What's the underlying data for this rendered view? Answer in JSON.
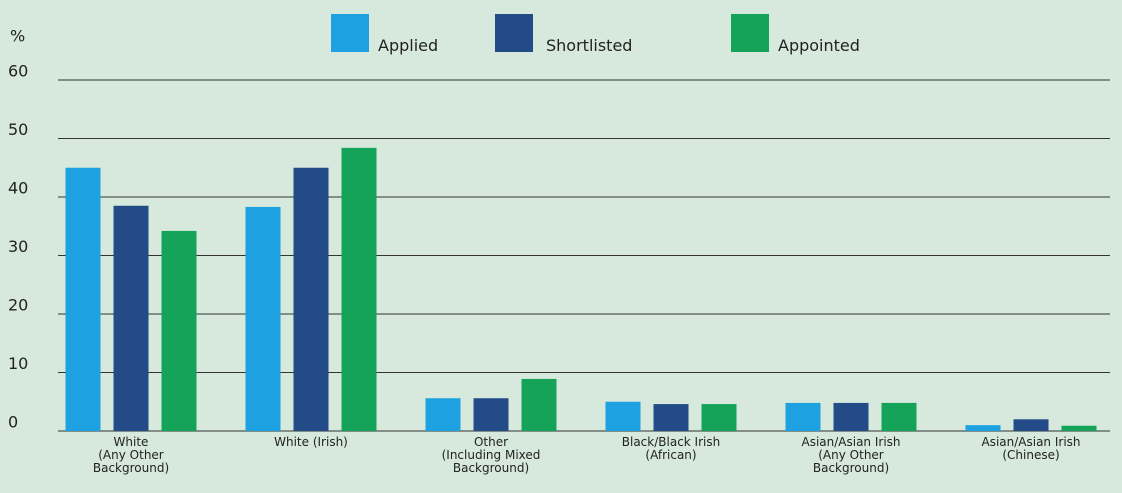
{
  "chart_data": {
    "type": "bar",
    "y_label": "%",
    "categories": [
      "White\n(Any Other\nBackground)",
      "White (Irish)",
      "Other\n(Including Mixed\nBackground)",
      "Black/Black Irish\n(African)",
      "Asian/Asian Irish\n(Any Other\nBackground)",
      "Asian/Asian Irish\n(Chinese)"
    ],
    "series": [
      {
        "name": "Applied",
        "color": "#1ea1e0",
        "values": [
          45,
          38.3,
          5.6,
          5.0,
          4.8,
          1.0
        ]
      },
      {
        "name": "Shortlisted",
        "color": "#224b87",
        "values": [
          38.5,
          45,
          5.6,
          4.6,
          4.8,
          2.0
        ]
      },
      {
        "name": "Appointed",
        "color": "#15a35a",
        "values": [
          34.2,
          48.4,
          8.9,
          4.6,
          4.8,
          0.9
        ]
      }
    ],
    "ylim": [
      0,
      60
    ],
    "yticks": [
      0,
      10,
      20,
      30,
      40,
      50,
      60
    ],
    "grid": true,
    "legend": "top"
  }
}
